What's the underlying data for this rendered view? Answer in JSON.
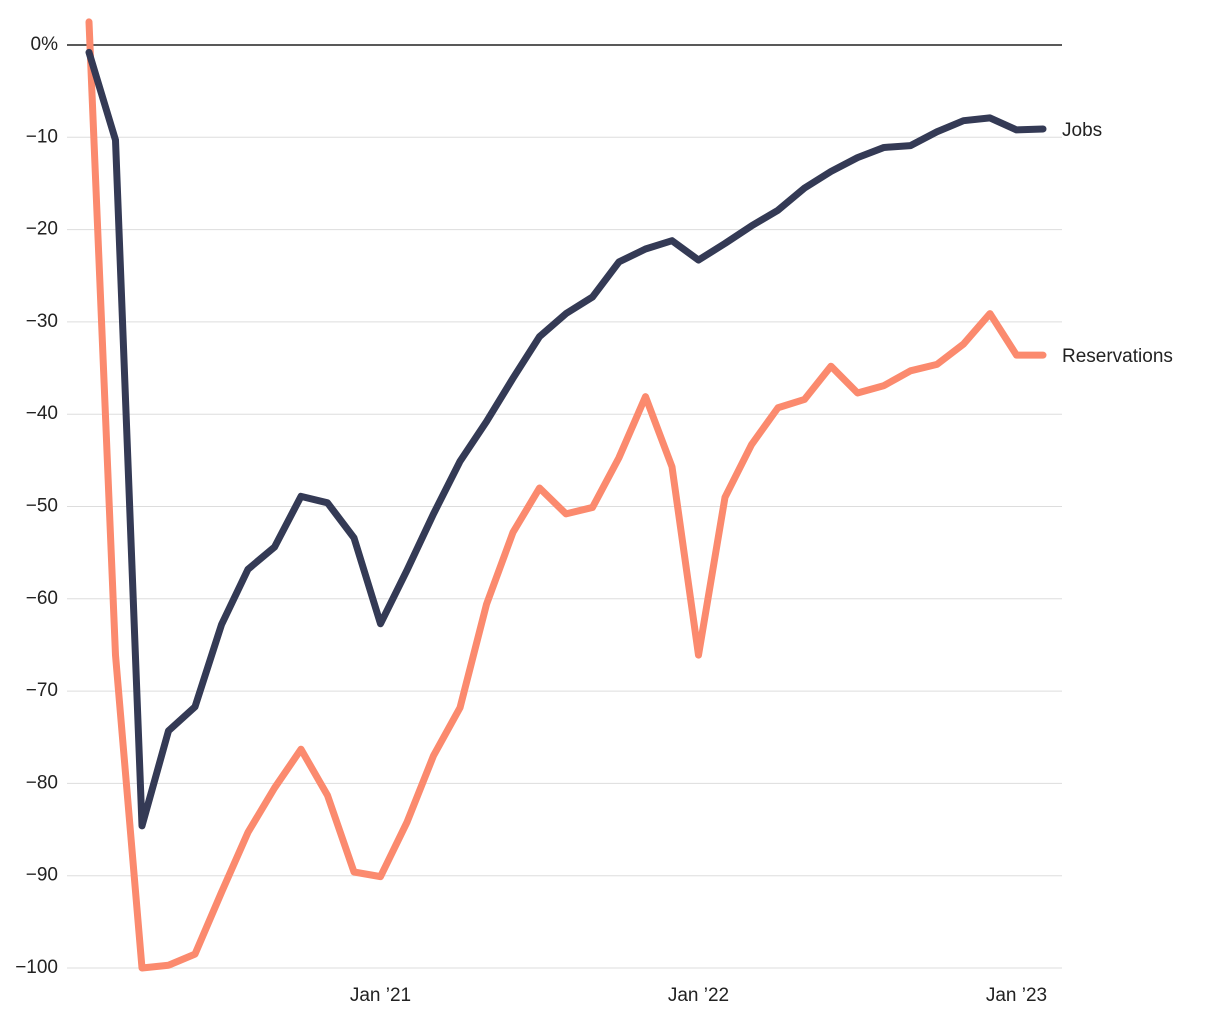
{
  "chart_data": {
    "type": "line",
    "categories": [
      null,
      null,
      null,
      null,
      null,
      null,
      null,
      null,
      null,
      null,
      null,
      "Jan ’21",
      null,
      null,
      null,
      null,
      null,
      null,
      null,
      null,
      null,
      null,
      null,
      "Jan ’22",
      null,
      null,
      null,
      null,
      null,
      null,
      null,
      null,
      null,
      null,
      null,
      "Jan ’23",
      null
    ],
    "series": [
      {
        "name": "Jobs",
        "color": "#343a55",
        "values": [
          -0.8,
          -10.3,
          -84.6,
          -74.3,
          -71.7,
          -62.8,
          -56.8,
          -54.4,
          -48.9,
          -49.6,
          -53.4,
          -62.7,
          -56.9,
          -50.8,
          -45.1,
          -40.8,
          -36.1,
          -31.6,
          -29.1,
          -27.3,
          -23.5,
          -22.1,
          -21.2,
          -23.3,
          -21.5,
          -19.6,
          -17.9,
          -15.5,
          -13.7,
          -12.2,
          -11.1,
          -10.9,
          -9.4,
          -8.2,
          -7.9,
          -9.2,
          -9.1
        ]
      },
      {
        "name": "Reservations",
        "color": "#fb8a6e",
        "values": [
          2.5,
          -66.1,
          -100,
          -99.7,
          -98.5,
          -91.8,
          -85.3,
          -80.5,
          -76.3,
          -81.3,
          -89.6,
          -90.1,
          -84.2,
          -77.0,
          -71.8,
          -60.6,
          -52.8,
          -48.0,
          -50.8,
          -50.1,
          -44.7,
          -38.1,
          -45.7,
          -66.1,
          -49.0,
          -43.3,
          -39.3,
          -38.4,
          -34.8,
          -37.7,
          -36.9,
          -35.3,
          -34.6,
          -32.4,
          -29.1,
          -33.6,
          -33.6
        ]
      }
    ],
    "ylim": [
      -100,
      0
    ],
    "yticks": [
      {
        "value": 0,
        "label": "0%"
      },
      {
        "value": -10,
        "label": "−10"
      },
      {
        "value": -20,
        "label": "−20"
      },
      {
        "value": -30,
        "label": "−30"
      },
      {
        "value": -40,
        "label": "−40"
      },
      {
        "value": -50,
        "label": "−50"
      },
      {
        "value": -60,
        "label": "−60"
      },
      {
        "value": -70,
        "label": "−70"
      },
      {
        "value": -80,
        "label": "−80"
      },
      {
        "value": -90,
        "label": "−90"
      },
      {
        "value": -100,
        "label": "−100"
      }
    ],
    "grid": true
  }
}
